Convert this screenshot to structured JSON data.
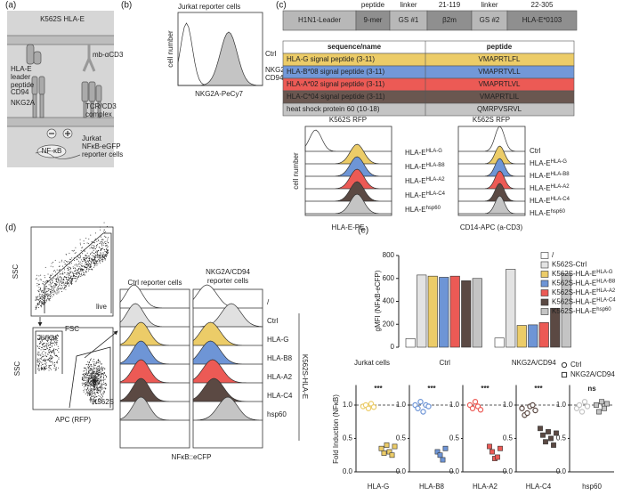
{
  "panel_a": {
    "label": "(a)",
    "target": "K562S HLA-E",
    "hla_e": [
      "HLA-E",
      "leader",
      "peptide"
    ],
    "antibody": "mb-αCD3",
    "cd94": "CD94",
    "nkg2a": "NKG2A",
    "tcr": [
      "TCR/CD3",
      "complex"
    ],
    "nfkb": "NF-κB",
    "reporter": [
      "Jurkat",
      "NFκB-eGFP",
      "reporter cells"
    ]
  },
  "panel_b": {
    "label": "(b)",
    "title": "Jurkat reporter cells",
    "ylabel": "cell number",
    "xlabel": "NKG2A-PeCy7",
    "ctrl": "Ctrl",
    "nkg": [
      "NKG2A/",
      "CD94"
    ]
  },
  "panel_c": {
    "label": "(c)",
    "construct": [
      {
        "name": "H1N1-Leader"
      },
      {
        "top": "peptide",
        "name": "9-mer"
      },
      {
        "top": "linker",
        "name": "GS #1"
      },
      {
        "top": "21-119",
        "name": "β2m"
      },
      {
        "top": "linker",
        "name": "GS #2"
      },
      {
        "top": "22-305",
        "name": "HLA-E*0103"
      }
    ],
    "table": {
      "header": [
        "sequence/name",
        "peptide"
      ],
      "rows": [
        {
          "name": "HLA-G signal peptide (3-11)",
          "peptide": "VMAPRTLFL",
          "color": "#eccc68"
        },
        {
          "name": "HLA-B*08 signal peptide (3-11)",
          "peptide": "VMAPRTVLL",
          "color": "#7298d8"
        },
        {
          "name": "HLA-A*02 signal peptide (3-11)",
          "peptide": "VMAPRTLVL",
          "color": "#ec5a55"
        },
        {
          "name": "HLA-C*04 signal peptide (3-11)",
          "peptide": "VMAPRTLIL",
          "color": "#6a5750"
        },
        {
          "name": "heat shock protein 60 (10-18)",
          "peptide": "QMRPVSRVL",
          "color": "#c4c4c4"
        }
      ]
    },
    "hist_left": {
      "title": "K562S RFP",
      "ylabel": "cell number",
      "xlabel": "HLA-E-PE",
      "rows": [
        {
          "base": "HLA-E",
          "sup": "HLA-G",
          "color": "#eccc68"
        },
        {
          "base": "HLA-E",
          "sup": "HLA-B8",
          "color": "#6e95d6"
        },
        {
          "base": "HLA-E",
          "sup": "HLA-A2",
          "color": "#ec5a55"
        },
        {
          "base": "HLA-E",
          "sup": "HLA-C4",
          "color": "#5b4943"
        },
        {
          "base": "HLA-E",
          "sup": "hsp60",
          "color": "#c4c4c4"
        }
      ]
    },
    "hist_right": {
      "title": "K562S RFP",
      "xlabel": "CD14-APC (a-CD3)",
      "rows": [
        {
          "base": "Ctrl",
          "color": "#ffffff"
        },
        {
          "base": "HLA-E",
          "sup": "HLA-G",
          "color": "#eccc68"
        },
        {
          "base": "HLA-E",
          "sup": "HLA-B8",
          "color": "#6e95d6"
        },
        {
          "base": "HLA-E",
          "sup": "HLA-A2",
          "color": "#ec5a55"
        },
        {
          "base": "HLA-E",
          "sup": "HLA-C4",
          "color": "#5b4943"
        },
        {
          "base": "HLA-E",
          "sup": "hsp60",
          "color": "#c4c4c4"
        }
      ]
    }
  },
  "panel_d": {
    "label": "(d)",
    "plot1": {
      "ylabel": "SSC",
      "xlabel": "FSC",
      "gate": "live"
    },
    "plot2": {
      "ylabel": "SSC",
      "xlabel": "APC (RFP)",
      "gates": [
        "Jurkat",
        "K562S"
      ]
    },
    "hist": {
      "ctrl_title": "Ctrl reporter cells",
      "nkg_title": [
        "NKG2A/CD94",
        "reporter cells"
      ],
      "group": "K562S-HLA-E",
      "xlabel": "NFκB::eCFP",
      "rows": [
        {
          "label": "/",
          "color": "#ffffff"
        },
        {
          "label": "Ctrl",
          "color": "#e0e0e0"
        },
        {
          "label": "HLA-G",
          "color": "#eccc68"
        },
        {
          "label": "HLA-B8",
          "color": "#6e95d6"
        },
        {
          "label": "HLA-A2",
          "color": "#ec5a55"
        },
        {
          "label": "HLA-C4",
          "color": "#5b4943"
        },
        {
          "label": "hsp60",
          "color": "#c4c4c4"
        }
      ]
    }
  },
  "panel_e": {
    "label": "(e)",
    "strip_legend": [
      "Ctrl",
      "NKG2A/CD94"
    ]
  },
  "chart_data": [
    {
      "type": "bar",
      "ylabel": "gMFI (NFκB-eCFP)",
      "category_label": "Jurkat cells",
      "categories": [
        "Ctrl",
        "NKG2A/CD94"
      ],
      "ylim": [
        0,
        800
      ],
      "yticks": [
        0,
        200,
        400,
        600,
        800
      ],
      "series": [
        {
          "name": "/",
          "color": "#ffffff",
          "values": [
            75,
            80
          ]
        },
        {
          "name": "K562S-Ctrl",
          "color": "#e3e3e3",
          "values": [
            630,
            680
          ]
        },
        {
          "name": "K562S-HLA-E",
          "sup": "HLA-G",
          "color": "#eccc68",
          "values": [
            620,
            190
          ]
        },
        {
          "name": "K562S-HLA-E",
          "sup": "HLA-B8",
          "color": "#6e95d6",
          "values": [
            610,
            195
          ]
        },
        {
          "name": "K562S-HLA-E",
          "sup": "HLA-A2",
          "color": "#ec5a55",
          "values": [
            620,
            215
          ]
        },
        {
          "name": "K562S-HLA-E",
          "sup": "HLA-C4",
          "color": "#5b4943",
          "values": [
            580,
            340
          ]
        },
        {
          "name": "K562S-HLA-E",
          "sup": "hsp60",
          "color": "#c4c4c4",
          "values": [
            600,
            640
          ]
        }
      ]
    },
    {
      "type": "strip",
      "title": "HLA-G",
      "ylabel": "Fold Induction (NFκB)",
      "annotation": "***",
      "color": "#eccc68",
      "reference_line": 1,
      "ylim": [
        0,
        1.3
      ],
      "yticks": [
        {
          "value": 0,
          "label": "0.0"
        },
        0.5,
        {
          "value": 1,
          "label": "1.0"
        }
      ],
      "series": [
        {
          "name": "Ctrl",
          "values": [
            0.98,
            1.0,
            0.95,
            1.02,
            0.97
          ]
        },
        {
          "name": "NKG2A/CD94",
          "values": [
            0.35,
            0.28,
            0.4,
            0.3,
            0.25,
            0.38
          ]
        }
      ]
    },
    {
      "type": "strip",
      "title": "HLA-B8",
      "annotation": "***",
      "color": "#6e95d6",
      "reference_line": 1,
      "ylim": [
        0,
        1.3
      ],
      "yticks": [
        {
          "value": 0,
          "label": "0.0"
        },
        0.5,
        {
          "value": 1,
          "label": "1.0"
        }
      ],
      "series": [
        {
          "name": "Ctrl",
          "values": [
            1.0,
            0.95,
            1.05,
            0.9,
            1.0,
            0.98
          ]
        },
        {
          "name": "NKG2A/CD94",
          "values": [
            0.3,
            0.25,
            0.18,
            0.35
          ]
        }
      ]
    },
    {
      "type": "strip",
      "title": "HLA-A2",
      "annotation": "***",
      "color": "#ec5a55",
      "reference_line": 1,
      "ylim": [
        0,
        1.3
      ],
      "yticks": [
        {
          "value": 0,
          "label": "0.0"
        },
        0.5,
        {
          "value": 1,
          "label": "1.0"
        }
      ],
      "series": [
        {
          "name": "Ctrl",
          "values": [
            1.0,
            0.95,
            1.05,
            0.98,
            0.93
          ]
        },
        {
          "name": "NKG2A/CD94",
          "values": [
            0.38,
            0.3,
            0.2,
            0.22,
            0.35
          ]
        }
      ]
    },
    {
      "type": "strip",
      "title": "HLA-C4",
      "annotation": "***",
      "color": "#5b4943",
      "reference_line": 1,
      "ylim": [
        0,
        1.3
      ],
      "yticks": [
        {
          "value": 0,
          "label": "0.0"
        },
        0.5,
        {
          "value": 1,
          "label": "1.0"
        }
      ],
      "series": [
        {
          "name": "Ctrl",
          "values": [
            0.95,
            0.85,
            0.88,
            0.98,
            1.0,
            0.92
          ]
        },
        {
          "name": "NKG2A/CD94",
          "values": [
            0.65,
            0.55,
            0.45,
            0.6,
            0.5,
            0.4,
            0.58
          ]
        }
      ]
    },
    {
      "type": "strip",
      "title": "hsp60",
      "annotation": "ns",
      "color": "#c4c4c4",
      "reference_line": 1,
      "ylim": [
        0,
        1.3
      ],
      "yticks": [
        {
          "value": 0,
          "label": "0.0"
        },
        0.5,
        {
          "value": 1,
          "label": "1.0"
        }
      ],
      "series": [
        {
          "name": "Ctrl",
          "values": [
            0.95,
            1.0,
            0.9,
            1.05,
            0.98
          ]
        },
        {
          "name": "NKG2A/CD94",
          "values": [
            1.0,
            0.9,
            1.05,
            0.95,
            1.02
          ]
        }
      ]
    }
  ]
}
